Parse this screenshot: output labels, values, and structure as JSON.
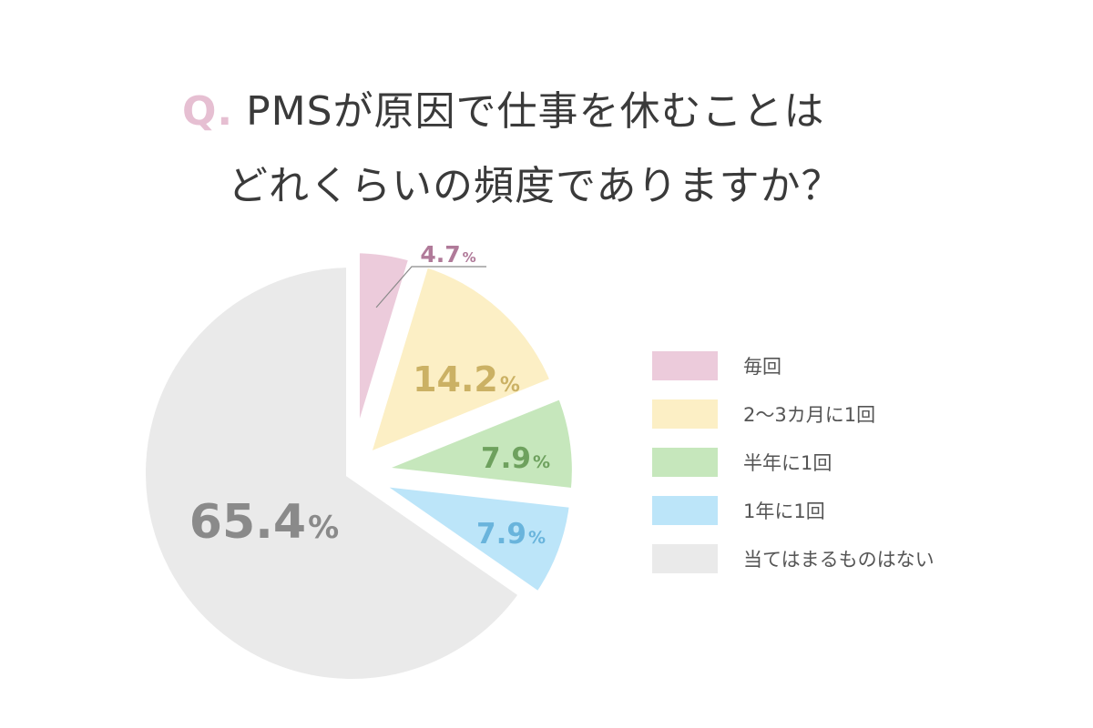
{
  "question": {
    "prefix": "Q.",
    "line1": "PMSが原因で仕事を休むことは",
    "line2": "どれくらいの頻度でありますか？"
  },
  "chart_data": {
    "type": "pie",
    "title": "",
    "legend_position": "right",
    "start_angle_deg": 0,
    "direction": "clockwise",
    "percent_symbol": "%",
    "slices": [
      {
        "label": "毎回",
        "value": 4.7,
        "display": "4.7",
        "color": "#eccbdb",
        "label_color": "#b07a99"
      },
      {
        "label": "2〜3カ月に1回",
        "value": 14.2,
        "display": "14.2",
        "color": "#fcefc5",
        "label_color": "#cbb164"
      },
      {
        "label": "半年に1回",
        "value": 7.9,
        "display": "7.9",
        "color": "#c6e7bc",
        "label_color": "#6ea15e"
      },
      {
        "label": "1年に1回",
        "value": 7.9,
        "display": "7.9",
        "color": "#bce5f9",
        "label_color": "#69b4dc"
      },
      {
        "label": "当てはまるものはない",
        "value": 65.4,
        "display": "65.4",
        "color": "#eaeaea",
        "label_color": "#8a8a8a"
      }
    ]
  }
}
